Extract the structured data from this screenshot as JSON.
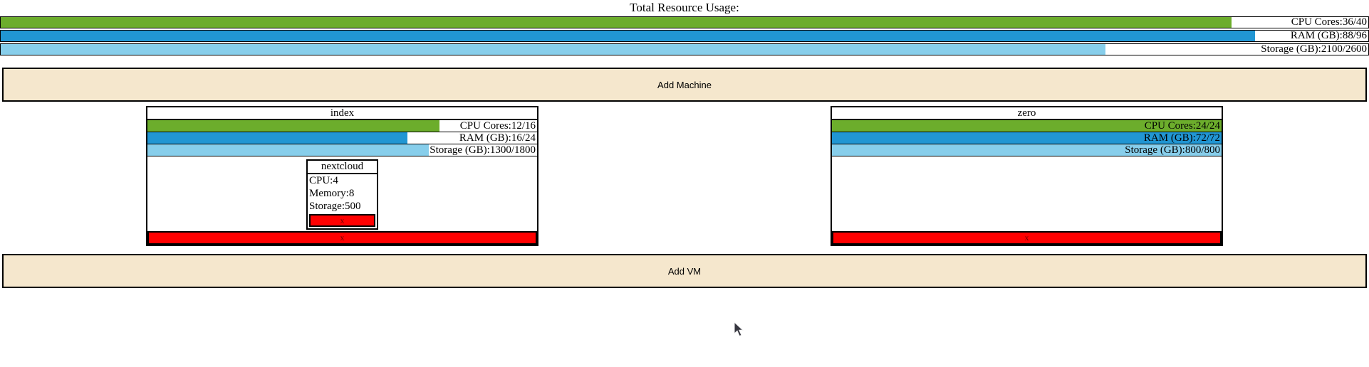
{
  "page": {
    "title": "Total Resource Usage:"
  },
  "totals": {
    "bars": [
      {
        "name": "cpu",
        "label": "CPU Cores:36/40",
        "used": 36,
        "total": 40,
        "pct": 90,
        "color": "#6cad2c"
      },
      {
        "name": "ram",
        "label": "RAM (GB):88/96",
        "used": 88,
        "total": 96,
        "pct": 91.7,
        "color": "#2196d3"
      },
      {
        "name": "storage",
        "label": "Storage (GB):2100/2600",
        "used": 2100,
        "total": 2600,
        "pct": 80.8,
        "color": "#87ceeb"
      }
    ]
  },
  "buttons": {
    "add_machine": "Add Machine",
    "add_vm": "Add VM"
  },
  "machines": [
    {
      "name": "index",
      "bars": [
        {
          "label": "CPU Cores:12/16",
          "used": 12,
          "total": 16,
          "pct": 75,
          "color": "#6cad2c"
        },
        {
          "label": "RAM (GB):16/24",
          "used": 16,
          "total": 24,
          "pct": 66.7,
          "color": "#2196d3"
        },
        {
          "label": "Storage (GB):1300/1800",
          "used": 1300,
          "total": 1800,
          "pct": 72.2,
          "color": "#87ceeb"
        }
      ],
      "delete_label": "x",
      "vms": [
        {
          "name": "nextcloud",
          "specs": {
            "cpu": "CPU:4",
            "memory": "Memory:8",
            "storage": "Storage:500"
          },
          "delete_label": "x"
        }
      ]
    },
    {
      "name": "zero",
      "bars": [
        {
          "label": "CPU Cores:24/24",
          "used": 24,
          "total": 24,
          "pct": 100,
          "color": "#6cad2c"
        },
        {
          "label": "RAM (GB):72/72",
          "used": 72,
          "total": 72,
          "pct": 100,
          "color": "#2196d3"
        },
        {
          "label": "Storage (GB):800/800",
          "used": 800,
          "total": 800,
          "pct": 100,
          "color": "#87ceeb"
        }
      ],
      "delete_label": "x",
      "vms": []
    }
  ]
}
